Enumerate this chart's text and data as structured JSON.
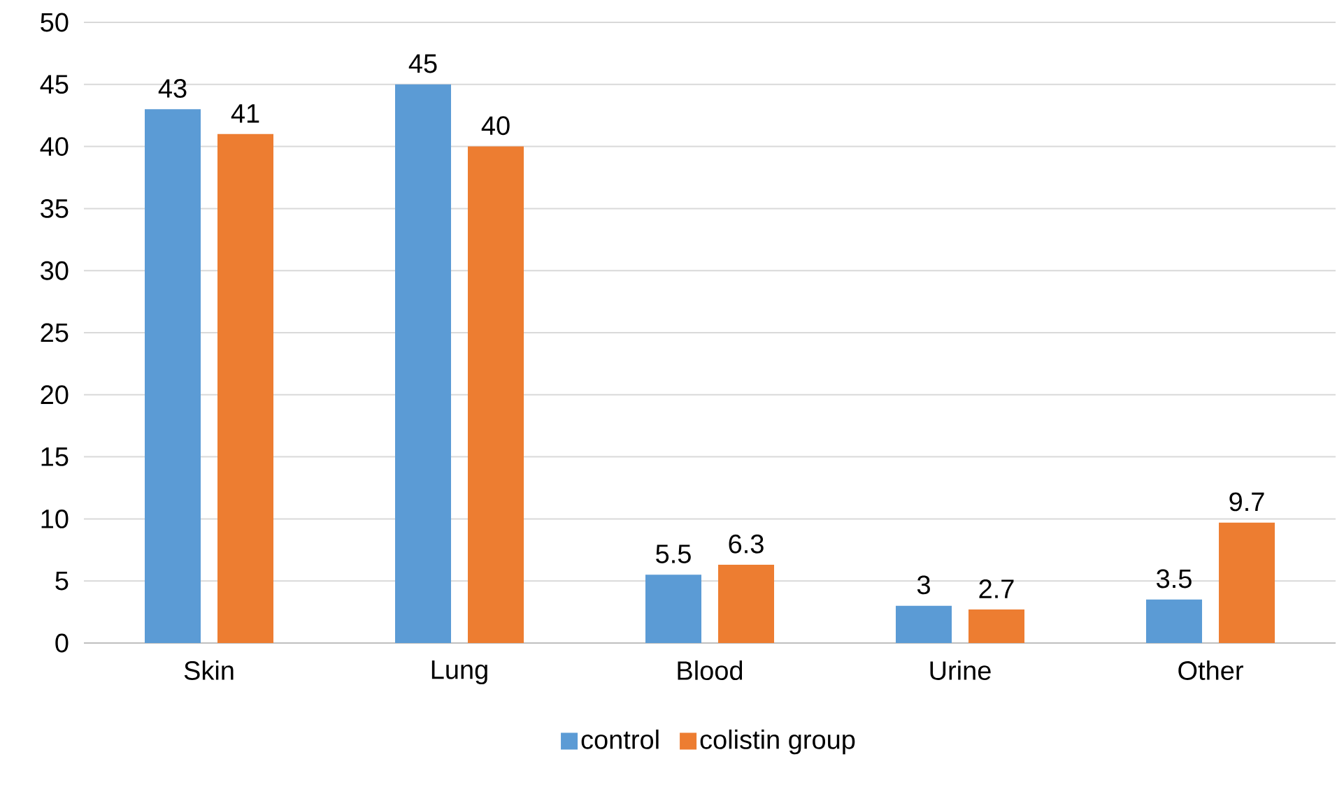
{
  "chart_data": {
    "type": "bar",
    "categories": [
      "Skin",
      "Lung",
      "Blood",
      "Urine",
      "Other"
    ],
    "series": [
      {
        "name": "control",
        "color": "#5b9bd5",
        "values": [
          43,
          45,
          5.5,
          3,
          3.5
        ]
      },
      {
        "name": "colistin group",
        "color": "#ed7d31",
        "values": [
          41,
          40,
          6.3,
          2.7,
          9.7
        ]
      }
    ],
    "ylim": [
      0,
      50
    ],
    "yticks": [
      0,
      5,
      10,
      15,
      20,
      25,
      30,
      35,
      40,
      45,
      50
    ],
    "grid": "y",
    "legend": "bottom",
    "data_labels": true
  }
}
